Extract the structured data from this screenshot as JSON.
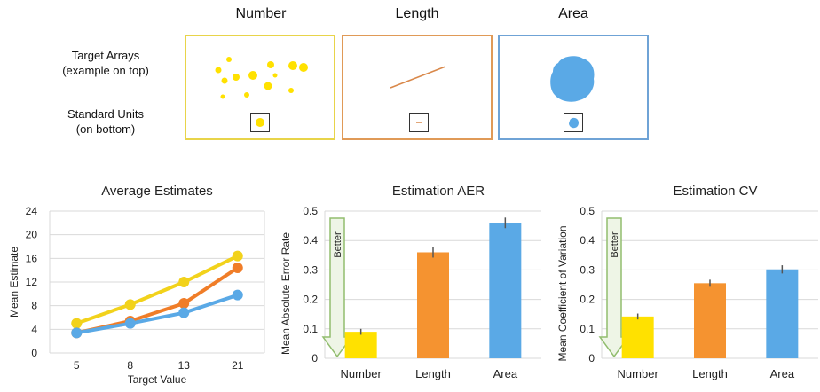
{
  "top": {
    "panels": [
      {
        "title": "Number",
        "border": "#e8d44a"
      },
      {
        "title": "Length",
        "border": "#e09a57"
      },
      {
        "title": "Area",
        "border": "#6fa3d6"
      }
    ],
    "target_label": [
      "Target Arrays",
      "(example on top)"
    ],
    "unit_label": [
      "Standard Units",
      "(on bottom)"
    ]
  },
  "colors": {
    "number": "#ffe100",
    "length": "#f59330",
    "area": "#5aa9e6",
    "number_line": "#f2d21b",
    "length_line": "#f07d28",
    "area_line": "#5aa9e6",
    "arrow_fill": "#eef5e6",
    "arrow_stroke": "#92bd6f"
  },
  "chart_data": [
    {
      "type": "line",
      "title": "Average Estimates",
      "xlabel": "Target Value",
      "ylabel": "Mean Estimate",
      "categories": [
        "5",
        "8",
        "13",
        "21"
      ],
      "ylim": [
        0,
        24
      ],
      "yticks": [
        "0",
        "4",
        "8",
        "12",
        "16",
        "20",
        "24"
      ],
      "grid": true,
      "series": [
        {
          "values": [
            5.0,
            8.2,
            12.0,
            16.4
          ],
          "color": "#f2d21b"
        },
        {
          "values": [
            3.4,
            5.4,
            8.4,
            14.4
          ],
          "color": "#f07d28"
        },
        {
          "values": [
            3.4,
            5.0,
            6.8,
            9.8
          ],
          "color": "#5aa9e6"
        }
      ]
    },
    {
      "type": "bar",
      "title": "Estimation AER",
      "ylabel": "Mean Absolute Error Rate",
      "categories": [
        "Number",
        "Length",
        "Area"
      ],
      "values": [
        0.09,
        0.36,
        0.46
      ],
      "errors": [
        0.01,
        0.018,
        0.018
      ],
      "ylim": [
        0,
        0.5
      ],
      "yticks": [
        "0",
        "0.1",
        "0.2",
        "0.3",
        "0.4",
        "0.5"
      ],
      "grid": true,
      "annotation": "Better"
    },
    {
      "type": "bar",
      "title": "Estimation CV",
      "ylabel": "Mean Coefficient of Variation",
      "categories": [
        "Number",
        "Length",
        "Area"
      ],
      "values": [
        0.142,
        0.255,
        0.302
      ],
      "errors": [
        0.01,
        0.012,
        0.014
      ],
      "ylim": [
        0,
        0.5
      ],
      "yticks": [
        "0",
        "0.1",
        "0.2",
        "0.3",
        "0.4",
        "0.5"
      ],
      "grid": true,
      "annotation": "Better"
    }
  ]
}
